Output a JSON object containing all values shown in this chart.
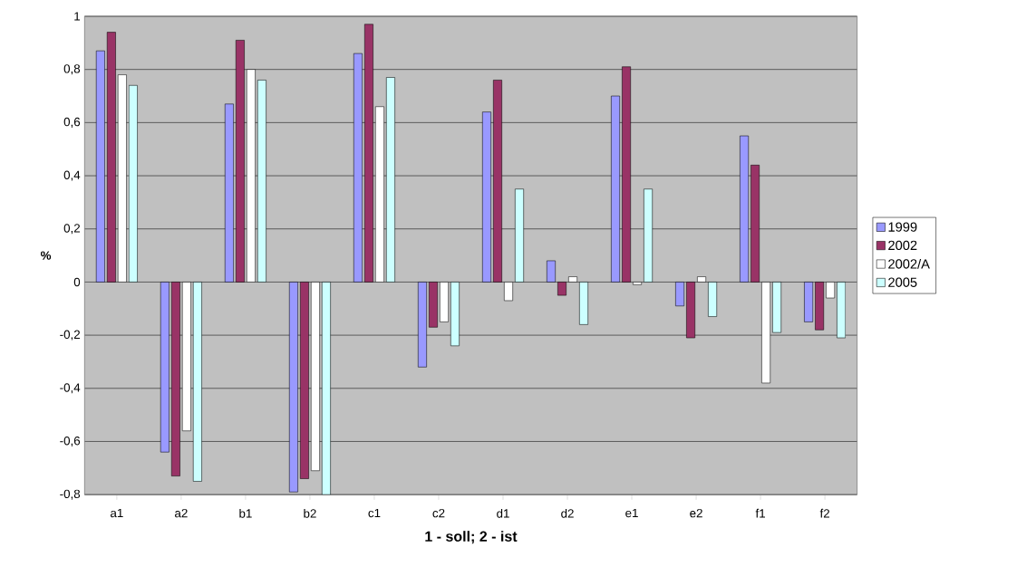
{
  "chart_data": {
    "type": "bar",
    "xlabel": "**1 - soll; 2 - ist**",
    "ylabel": "**%**",
    "categories": [
      "a1",
      "a2",
      "b1",
      "b2",
      "c1",
      "c2",
      "d1",
      "d2",
      "e1",
      "e2",
      "f1",
      "f2"
    ],
    "series": [
      {
        "name": "1999",
        "color": "#9999ff",
        "values": [
          0.87,
          -0.64,
          0.67,
          -0.79,
          0.86,
          -0.32,
          0.64,
          0.08,
          0.7,
          -0.09,
          0.55,
          -0.15
        ]
      },
      {
        "name": "2002",
        "color": "#993366",
        "values": [
          0.94,
          -0.73,
          0.91,
          -0.74,
          0.97,
          -0.17,
          0.76,
          -0.05,
          0.81,
          -0.21,
          0.44,
          -0.18
        ]
      },
      {
        "name": "2002/A",
        "color": "#ffffff",
        "values": [
          0.78,
          -0.56,
          0.8,
          -0.71,
          0.66,
          -0.15,
          -0.07,
          0.02,
          -0.01,
          0.02,
          -0.38,
          -0.06
        ]
      },
      {
        "name": "2005",
        "color": "#ccffff",
        "values": [
          0.74,
          -0.75,
          0.76,
          -0.8,
          0.77,
          -0.24,
          0.35,
          -0.16,
          0.35,
          -0.13,
          -0.19,
          -0.21
        ]
      }
    ],
    "ylim": [
      -0.8,
      1
    ],
    "yticks": [
      {
        "value": -0.8,
        "label": "-0,8"
      },
      {
        "value": -0.6,
        "label": "-0,6"
      },
      {
        "value": -0.4,
        "label": "-0,4"
      },
      {
        "value": -0.2,
        "label": "-0,2"
      },
      0,
      {
        "value": 0.2,
        "label": "0,2"
      },
      {
        "value": 0.4,
        "label": "0,4"
      },
      {
        "value": 0.6,
        "label": "0,6"
      },
      {
        "value": 0.8,
        "label": "0,8"
      },
      1
    ],
    "grid": "y",
    "legend": "right"
  }
}
